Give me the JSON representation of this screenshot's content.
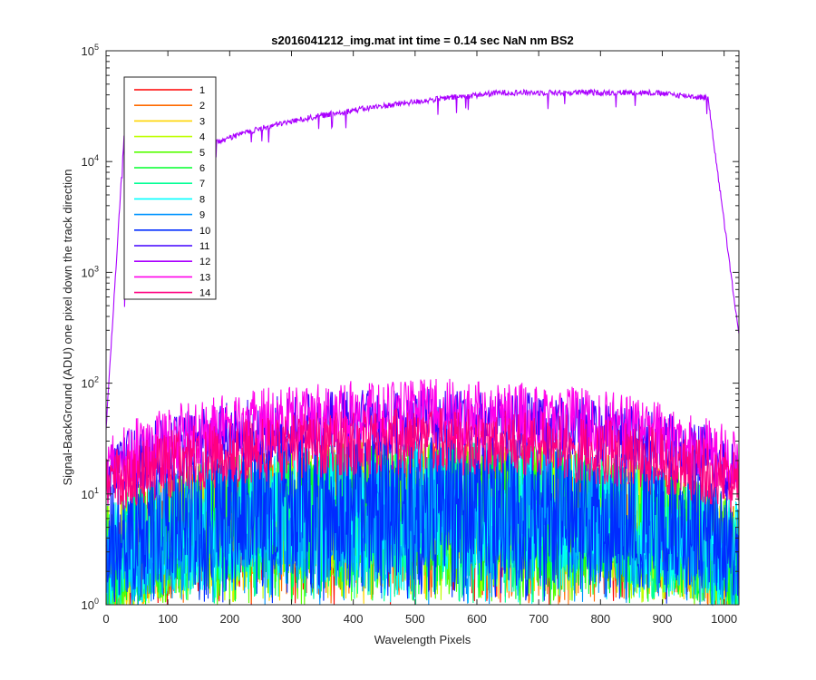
{
  "chart_data": {
    "type": "line",
    "title": "s2016041212_img.mat int time = 0.14 sec  NaN nm BS2",
    "xlabel": "Wavelength Pixels",
    "ylabel": "Signal-BackGround (ADU) one pixel down the track direction",
    "xlim": [
      0,
      1024
    ],
    "ylim": [
      1,
      100000
    ],
    "yscale": "log",
    "grid": false,
    "legend_position": "top-left",
    "x_ticks": [
      "0",
      "100",
      "200",
      "300",
      "400",
      "500",
      "600",
      "700",
      "800",
      "900",
      "1000"
    ],
    "y_ticks": [
      {
        "base": "10",
        "exp": "0"
      },
      {
        "base": "10",
        "exp": "1"
      },
      {
        "base": "10",
        "exp": "2"
      },
      {
        "base": "10",
        "exp": "3"
      },
      {
        "base": "10",
        "exp": "4"
      },
      {
        "base": "10",
        "exp": "5"
      }
    ],
    "series": [
      {
        "name": "1",
        "color": "#ff0000",
        "profile": {
          "peak": 30,
          "edge": 8,
          "noise": "high"
        }
      },
      {
        "name": "2",
        "color": "#ff6a00",
        "profile": {
          "peak": 30,
          "edge": 8,
          "noise": "high"
        }
      },
      {
        "name": "3",
        "color": "#ffd500",
        "profile": {
          "peak": 30,
          "edge": 8,
          "noise": "high"
        }
      },
      {
        "name": "4",
        "color": "#bfff00",
        "profile": {
          "peak": 30,
          "edge": 8,
          "noise": "high"
        }
      },
      {
        "name": "5",
        "color": "#55ff00",
        "profile": {
          "peak": 30,
          "edge": 8,
          "noise": "high"
        }
      },
      {
        "name": "6",
        "color": "#00ff2b",
        "profile": {
          "peak": 30,
          "edge": 8,
          "noise": "high"
        }
      },
      {
        "name": "7",
        "color": "#00ff95",
        "profile": {
          "peak": 30,
          "edge": 8,
          "noise": "high"
        }
      },
      {
        "name": "8",
        "color": "#00ffff",
        "profile": {
          "peak": 30,
          "edge": 8,
          "noise": "high"
        }
      },
      {
        "name": "9",
        "color": "#0095ff",
        "profile": {
          "peak": 30,
          "edge": 8,
          "noise": "high"
        }
      },
      {
        "name": "10",
        "color": "#002bff",
        "profile": {
          "peak": 40,
          "edge": 12,
          "noise": "high"
        }
      },
      {
        "name": "11",
        "color": "#4000ff",
        "profile": {
          "peak": 90,
          "edge": 30,
          "noise": "medium"
        }
      },
      {
        "name": "12",
        "color": "#aa00ff",
        "profile": {
          "peak": 42000,
          "edge": 300,
          "noise": "low"
        }
      },
      {
        "name": "13",
        "color": "#ff00ea",
        "profile": {
          "peak": 110,
          "edge": 35,
          "noise": "medium"
        }
      },
      {
        "name": "14",
        "color": "#ff0080",
        "profile": {
          "peak": 60,
          "edge": 25,
          "noise": "medium"
        }
      }
    ]
  }
}
